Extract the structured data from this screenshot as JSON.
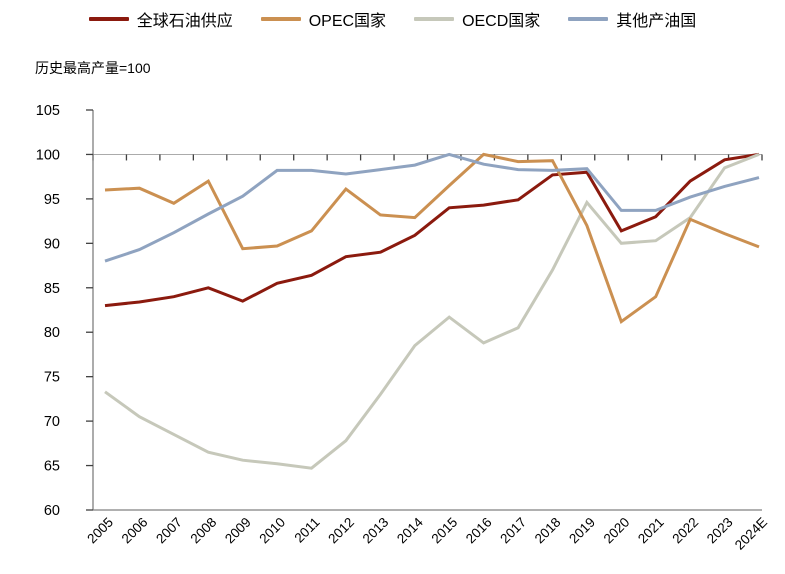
{
  "subtitle": "历史最高产量=100",
  "legend": {
    "items": [
      {
        "label": "全球石油供应",
        "color": "#8B1A0E"
      },
      {
        "label": "OPEC国家",
        "color": "#CB9051"
      },
      {
        "label": "OECD国家",
        "color": "#C6C8BA"
      },
      {
        "label": "其他产油国",
        "color": "#8FA3C0"
      }
    ]
  },
  "chart_data": {
    "type": "line",
    "title": "",
    "subtitle": "历史最高产量=100",
    "xlabel": "",
    "ylabel": "",
    "ylim": [
      60,
      105
    ],
    "yticks": [
      105,
      100,
      95,
      90,
      85,
      80,
      75,
      70,
      65,
      60
    ],
    "reference_line": 100,
    "grid": "single horizontal line at y=100",
    "legend_position": "top",
    "categories": [
      "2005",
      "2006",
      "2007",
      "2008",
      "2009",
      "2010",
      "2011",
      "2012",
      "2013",
      "2014",
      "2015",
      "2016",
      "2017",
      "2018",
      "2019",
      "2020",
      "2021",
      "2022",
      "2023",
      "2024E"
    ],
    "series": [
      {
        "name": "全球石油供应",
        "color": "#8B1A0E",
        "values": [
          83.0,
          83.4,
          84.0,
          85.0,
          83.5,
          85.5,
          86.4,
          88.5,
          89.0,
          90.9,
          94.0,
          94.3,
          94.9,
          97.7,
          98.0,
          91.4,
          93.0,
          97.0,
          99.4,
          100.0
        ]
      },
      {
        "name": "OPEC国家",
        "color": "#CB9051",
        "values": [
          96.0,
          96.2,
          94.5,
          97.0,
          89.4,
          89.7,
          91.4,
          96.1,
          93.2,
          92.9,
          96.5,
          100.0,
          99.2,
          99.3,
          92.0,
          81.2,
          84.0,
          92.7,
          91.1,
          89.6
        ]
      },
      {
        "name": "OECD国家",
        "color": "#C6C8BA",
        "values": [
          73.3,
          70.5,
          68.5,
          66.5,
          65.6,
          65.2,
          64.7,
          67.8,
          73.0,
          78.5,
          81.7,
          78.8,
          80.5,
          87.0,
          94.6,
          90.0,
          90.3,
          92.9,
          98.5,
          100.0
        ]
      },
      {
        "name": "其他产油国",
        "color": "#8FA3C0",
        "values": [
          88.0,
          89.3,
          91.2,
          93.3,
          95.3,
          98.2,
          98.2,
          97.8,
          98.3,
          98.8,
          100.0,
          98.9,
          98.3,
          98.2,
          98.4,
          93.7,
          93.7,
          95.2,
          96.4,
          97.4
        ]
      }
    ],
    "colors": {
      "reference_line": "#ABABAB",
      "axis": "#808080",
      "tick": "#404040",
      "text": "#000000"
    }
  }
}
